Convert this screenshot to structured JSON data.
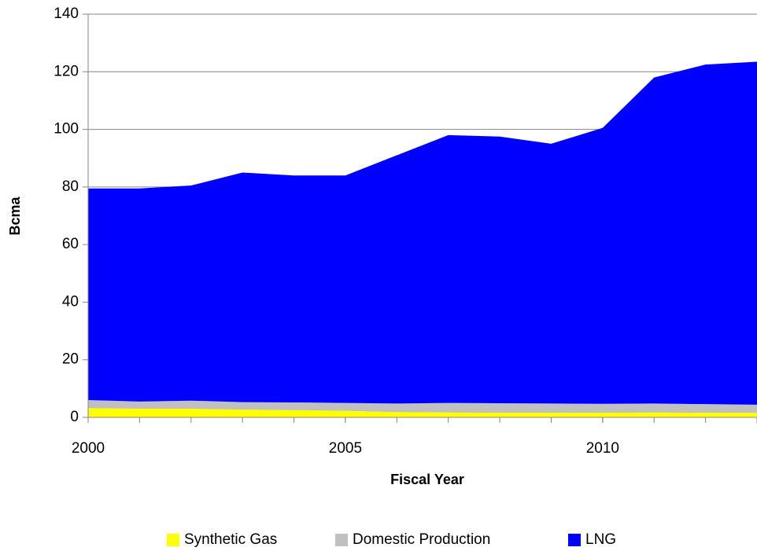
{
  "chart_data": {
    "type": "stacked_area",
    "x_label": "Fiscal Year",
    "y_label": "Bcma",
    "x": [
      2000,
      2001,
      2002,
      2003,
      2004,
      2005,
      2006,
      2007,
      2008,
      2009,
      2010,
      2011,
      2012,
      2013
    ],
    "series": [
      {
        "name": "Synthetic Gas",
        "color": "#ffff00",
        "values": [
          3.2,
          3.0,
          3.0,
          2.7,
          2.5,
          2.3,
          1.8,
          1.7,
          1.6,
          1.6,
          1.6,
          1.7,
          1.6,
          1.6
        ]
      },
      {
        "name": "Domestic Production",
        "color": "#c0c0c0",
        "values": [
          2.8,
          2.5,
          2.8,
          2.6,
          2.7,
          2.7,
          3.0,
          3.3,
          3.3,
          3.2,
          3.1,
          3.1,
          3.0,
          2.8
        ]
      },
      {
        "name": "LNG",
        "color": "#0000ff",
        "values": [
          73.5,
          74.0,
          74.7,
          79.7,
          78.8,
          79.0,
          86.2,
          93.0,
          92.6,
          90.2,
          95.8,
          113.2,
          117.9,
          119.1
        ]
      }
    ],
    "xlim": [
      2000,
      2013
    ],
    "xticks": [
      2000,
      2005,
      2010
    ],
    "ylim": [
      0,
      140
    ],
    "yticks": [
      0,
      20,
      40,
      60,
      80,
      100,
      120,
      140
    ],
    "grid": true,
    "legend": "bottom"
  }
}
